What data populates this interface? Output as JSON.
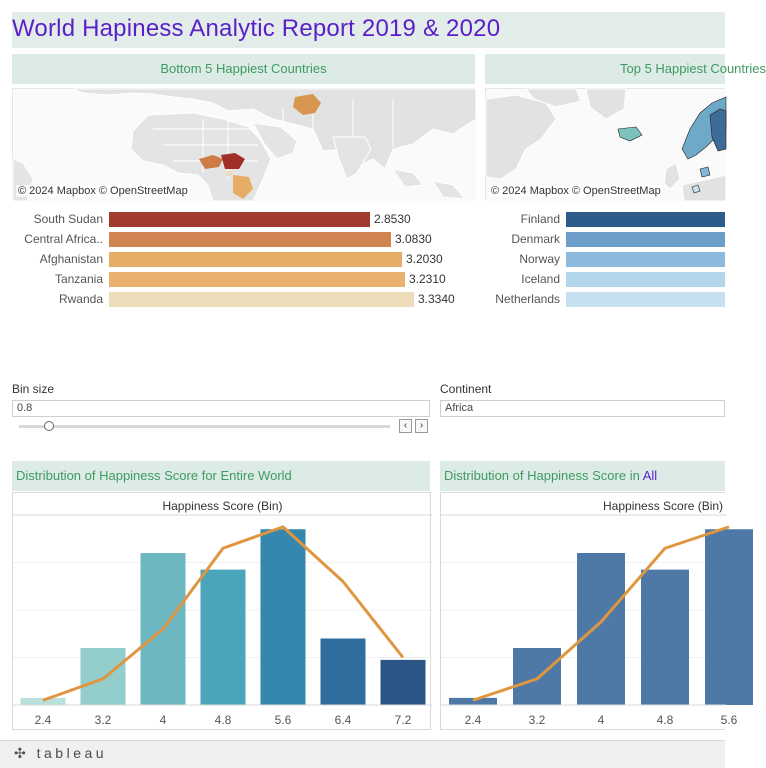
{
  "title": "World Hapiness Analytic Report 2019 & 2020",
  "bottom_panel": {
    "header": "Bottom 5 Happiest Countries",
    "map_credit": "© 2024 Mapbox © OpenStreetMap",
    "rows": [
      {
        "country": "South Sudan",
        "value_label": "2.8530",
        "value": 2.853,
        "color": "#a23a30"
      },
      {
        "country": "Central Africa..",
        "value_label": "3.0830",
        "value": 3.083,
        "color": "#d0844f"
      },
      {
        "country": "Afghanistan",
        "value_label": "3.2030",
        "value": 3.203,
        "color": "#e6ad67"
      },
      {
        "country": "Tanzania",
        "value_label": "3.2310",
        "value": 3.231,
        "color": "#e8b26e"
      },
      {
        "country": "Rwanda",
        "value_label": "3.3340",
        "value": 3.334,
        "color": "#ecdcba"
      }
    ]
  },
  "top_panel": {
    "header": "Top 5 Happiest Countries",
    "map_credit": "© 2024 Mapbox © OpenStreetMap",
    "rows": [
      {
        "country": "Finland",
        "color": "#2d5b8a"
      },
      {
        "country": "Denmark",
        "color": "#6d9dc9"
      },
      {
        "country": "Norway",
        "color": "#8cb9dc"
      },
      {
        "country": "Iceland",
        "color": "#b3d6ea"
      },
      {
        "country": "Netherlands",
        "color": "#c6e0ef"
      }
    ]
  },
  "controls": {
    "bin_label": "Bin size",
    "bin_value": "0.8",
    "bin_slider_fraction": 0.06,
    "prev_symbol": "‹",
    "next_symbol": "›",
    "continent_label": "Continent",
    "continent_value": "Africa"
  },
  "hist_world": {
    "title": "Distribution of Happiness Score for Entire World",
    "axis_title": "Happiness Score (Bin)"
  },
  "hist_continent": {
    "title_prefix": "Distribution of Happiness Score in ",
    "title_link": "All",
    "axis_title": "Happiness Score (Bin)"
  },
  "footer": {
    "logo_text": "tableau"
  },
  "chart_data": [
    {
      "type": "bar",
      "title": "Distribution of Happiness Score for Entire World",
      "xlabel": "Happiness Score (Bin)",
      "categories": [
        "2.4",
        "3.2",
        "4",
        "4.8",
        "5.6",
        "6.4",
        "7.2"
      ],
      "values": [
        3,
        24,
        64,
        57,
        74,
        28,
        19
      ],
      "colors": [
        "#b9e0dd",
        "#93cdcc",
        "#6db7c3",
        "#4aa4ba",
        "#3687ad",
        "#2e6d9d",
        "#2b5585"
      ],
      "line_values": [
        2,
        11,
        32,
        66,
        75,
        52,
        20
      ],
      "line_color": "#e0953f",
      "ylim": [
        0,
        80
      ]
    },
    {
      "type": "bar",
      "title": "Distribution of Happiness Score in All",
      "xlabel": "Happiness Score (Bin)",
      "categories": [
        "2.4",
        "3.2",
        "4",
        "4.8",
        "5.6"
      ],
      "values": [
        3,
        24,
        64,
        57,
        74
      ],
      "colors": [
        "#4e79a7",
        "#4e79a7",
        "#4e79a7",
        "#4e79a7",
        "#4e79a7"
      ],
      "line_values": [
        2,
        11,
        35,
        66,
        75
      ],
      "line_color": "#e0953f",
      "ylim": [
        0,
        80
      ]
    }
  ]
}
